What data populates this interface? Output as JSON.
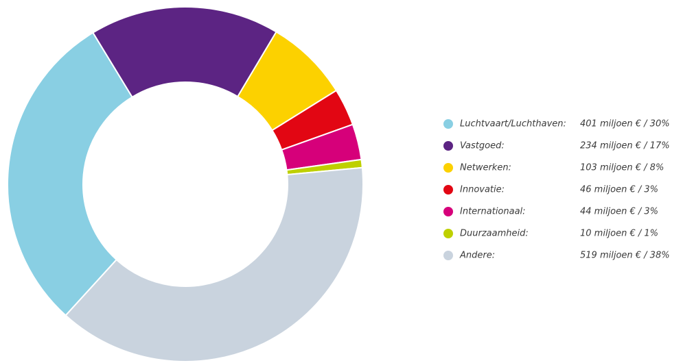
{
  "chart_data": {
    "type": "donut",
    "categories": [
      "Luchtvaart/Luchthaven:",
      "Vastgoed:",
      "Netwerken:",
      "Innovatie:",
      "Internationaal:",
      "Duurzaamheid:",
      "Andere:"
    ],
    "values": [
      401,
      234,
      103,
      46,
      44,
      10,
      519
    ],
    "value_labels": [
      "401 miljoen € / 30%",
      "234 miljoen € / 17%",
      "103 miljoen € / 8%",
      "46 miljoen € / 3%",
      "44 miljoen € / 3%",
      "10 miljoen € / 1%",
      "519 miljoen € / 38%"
    ],
    "colors": [
      "#89cfe3",
      "#5c2483",
      "#fcd100",
      "#e20613",
      "#d6007a",
      "#bed000",
      "#c9d3de"
    ],
    "legend": "right"
  }
}
